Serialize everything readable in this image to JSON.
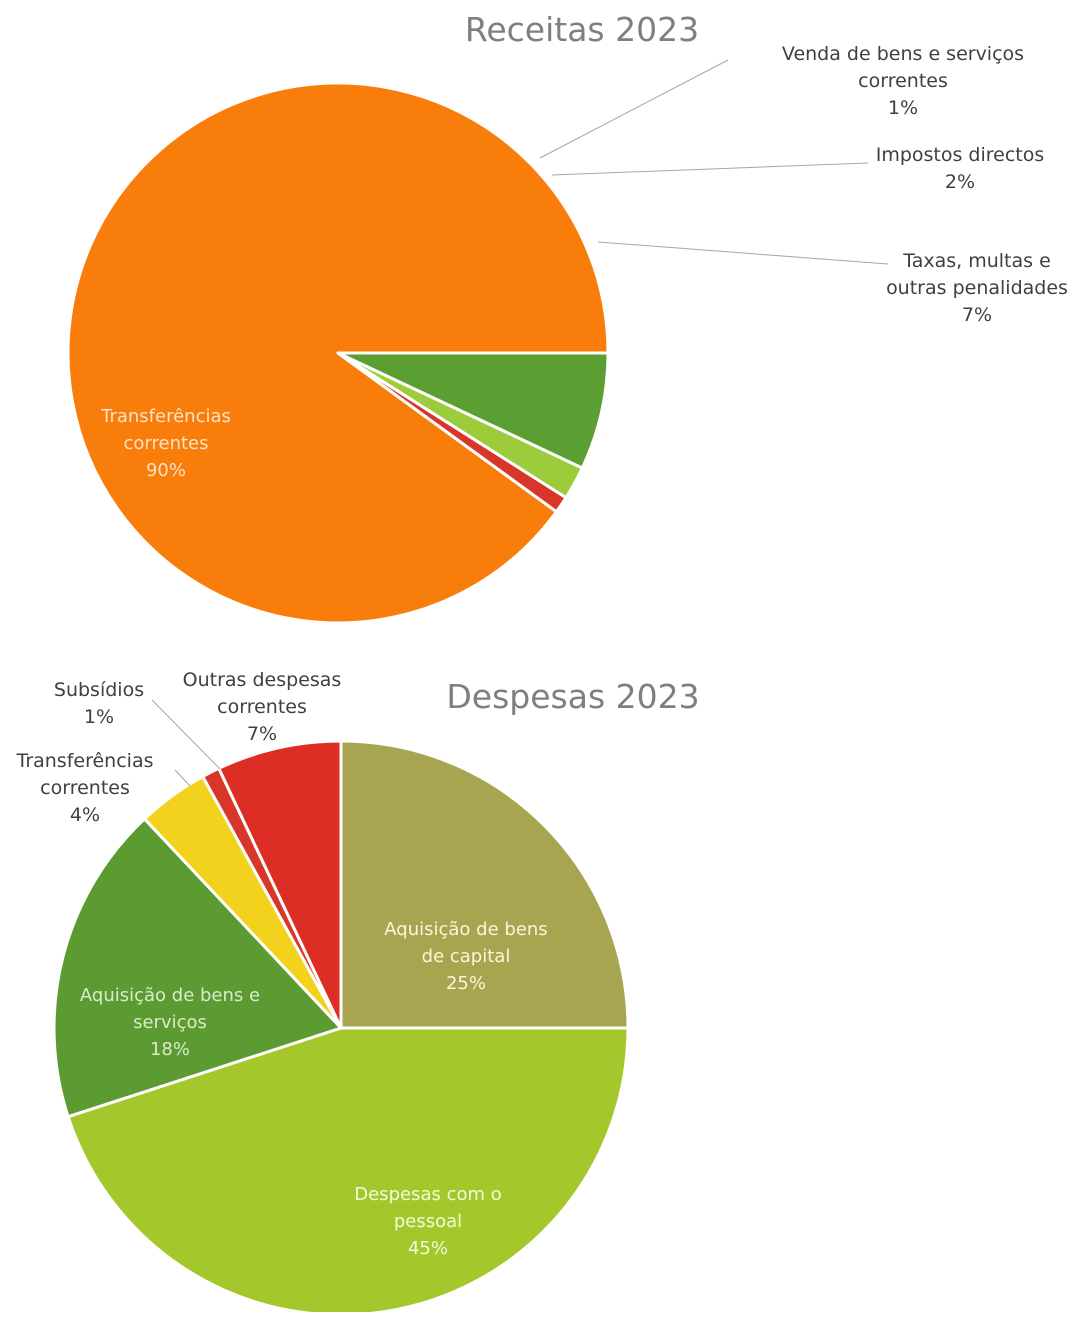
{
  "chart_data": [
    {
      "type": "pie",
      "title": "Receitas 2023",
      "slices": [
        {
          "label": [
            "Transferências",
            "correntes"
          ],
          "value": 90,
          "display": "90%",
          "color": "#f97d0b",
          "label_pos": "inside"
        },
        {
          "label": [
            "Venda de bens e serviços",
            "correntes"
          ],
          "value": 1,
          "display": "1%",
          "color": "#d8362a",
          "label_pos": "outside"
        },
        {
          "label": [
            "Impostos directos"
          ],
          "value": 2,
          "display": "2%",
          "color": "#9ccb3c",
          "label_pos": "outside"
        },
        {
          "label": [
            "Taxas, multas e",
            "outras penalidades"
          ],
          "value": 7,
          "display": "7%",
          "color": "#5b9f32",
          "label_pos": "outside"
        }
      ]
    },
    {
      "type": "pie",
      "title": "Despesas 2023",
      "slices": [
        {
          "label": [
            "Aquisição de bens",
            "de capital"
          ],
          "value": 25,
          "display": "25%",
          "color": "#a8a551",
          "label_pos": "inside"
        },
        {
          "label": [
            "Despesas com o",
            "pessoal"
          ],
          "value": 45,
          "display": "45%",
          "color": "#a4c72b",
          "label_pos": "inside"
        },
        {
          "label": [
            "Aquisição  de bens e",
            "serviços"
          ],
          "value": 18,
          "display": "18%",
          "color": "#5b9b32",
          "label_pos": "inside"
        },
        {
          "label": [
            "Transferências",
            "correntes"
          ],
          "value": 4,
          "display": "4%",
          "color": "#f2d21c",
          "label_pos": "outside"
        },
        {
          "label": [
            "Subsídios"
          ],
          "value": 1,
          "display": "1%",
          "color": "#d8362a",
          "label_pos": "outside"
        },
        {
          "label": [
            "Outras despesas",
            "correntes"
          ],
          "value": 7,
          "display": "7%",
          "color": "#dc2e24",
          "label_pos": "outside"
        }
      ]
    }
  ]
}
